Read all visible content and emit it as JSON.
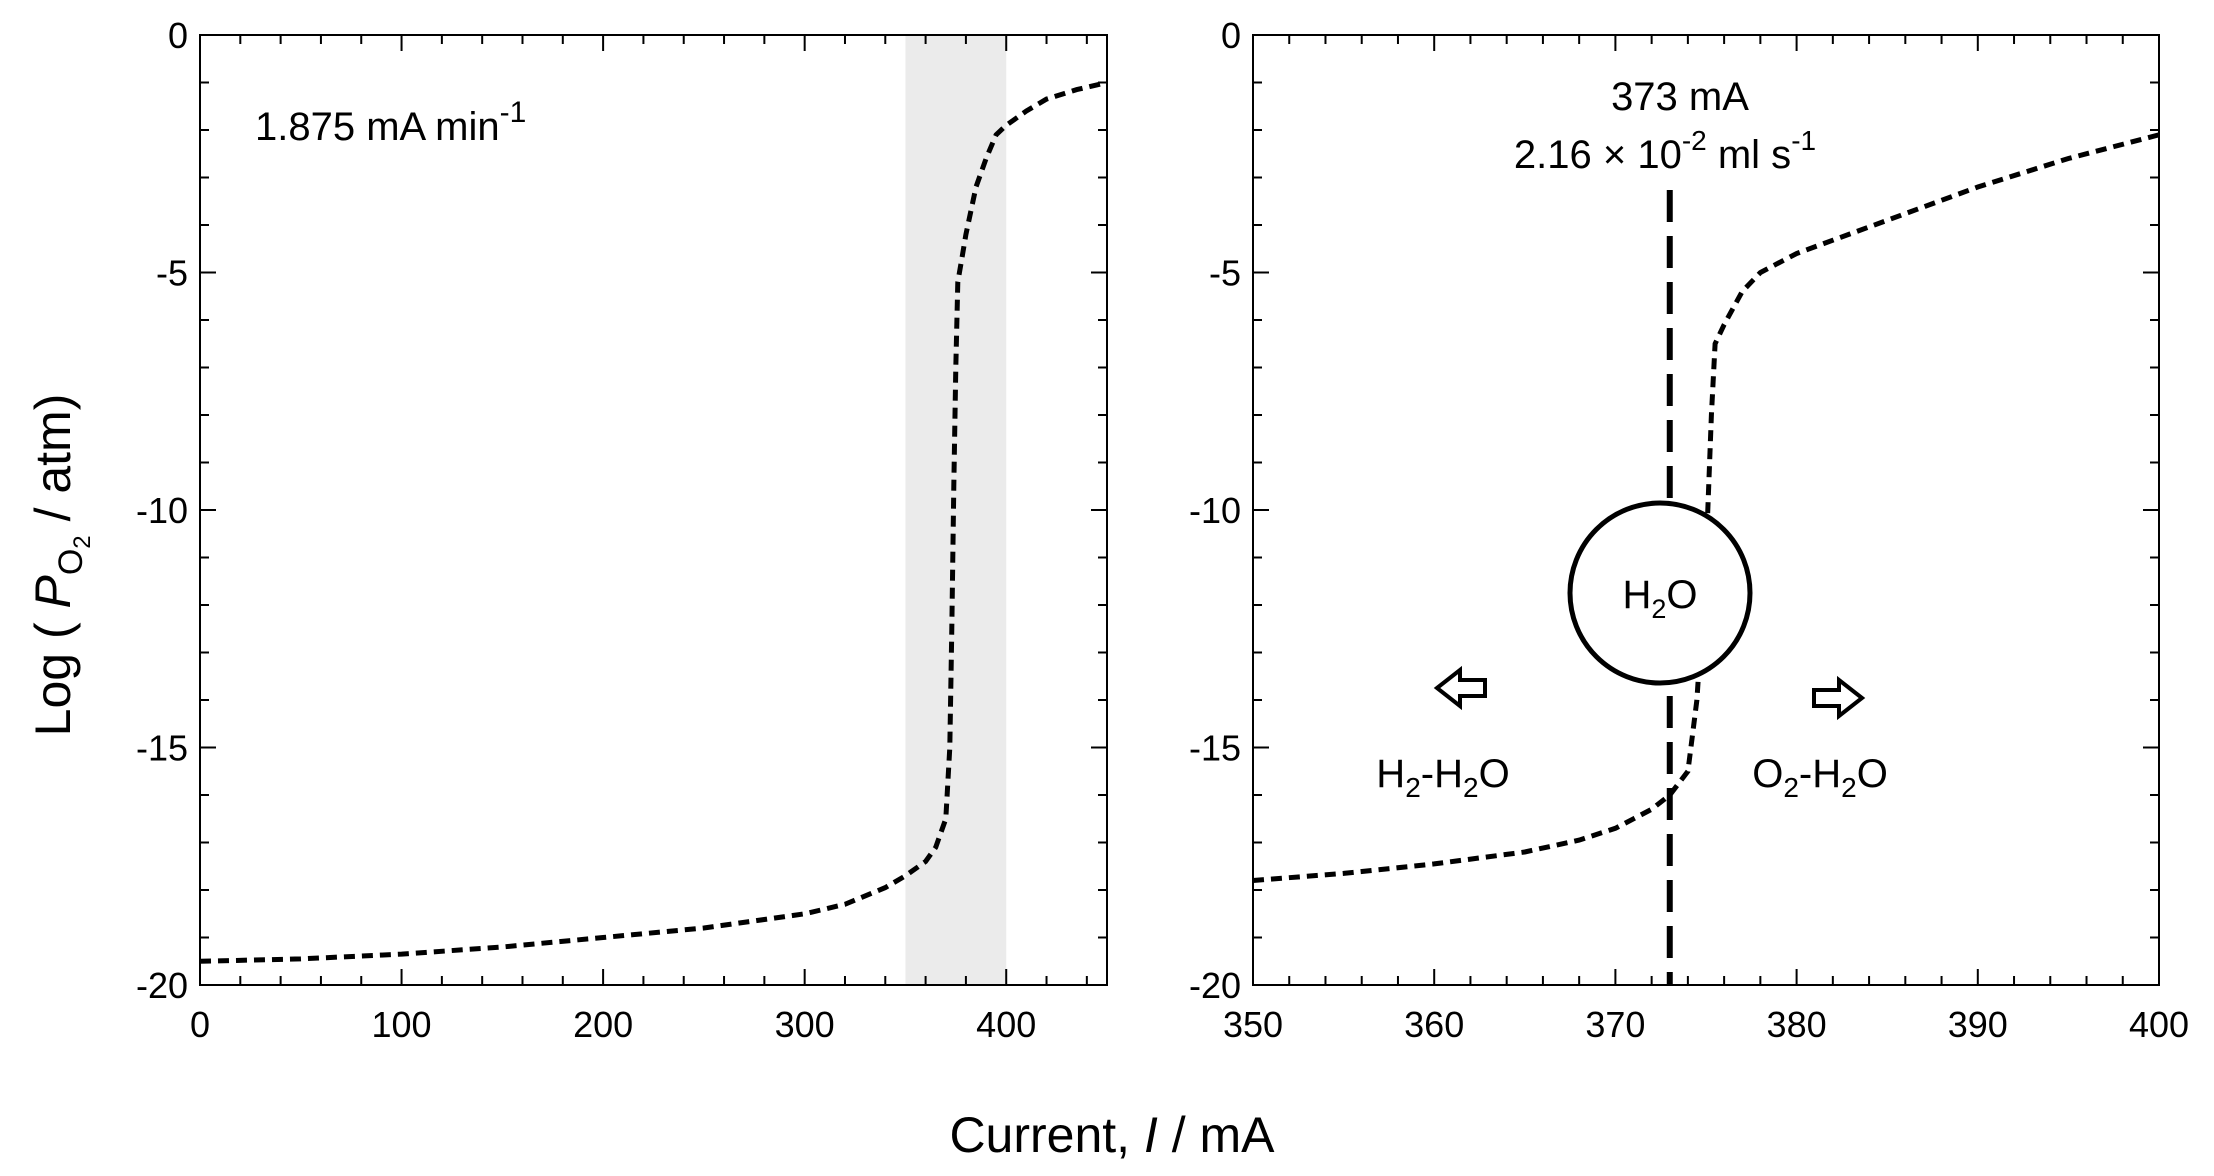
{
  "y_axis_title": {
    "prefix": "Log ( ",
    "var": "P",
    "sub": "O",
    "subsub": "2",
    "suffix": " / atm)"
  },
  "x_axis_title": {
    "prefix": "Current, ",
    "var": "I",
    "suffix": " / mA"
  },
  "chart_data": [
    {
      "type": "line",
      "xlim": [
        0,
        450
      ],
      "ylim": [
        -20,
        0
      ],
      "x_ticks": [
        0,
        100,
        200,
        300,
        400
      ],
      "y_ticks": [
        0,
        -5,
        -10,
        -15,
        -20
      ],
      "shaded_region": {
        "x": [
          350,
          400
        ],
        "color": "#ebebeb"
      },
      "annotation": {
        "text": "1.875 mA min",
        "sup": "-1"
      },
      "series": [
        {
          "style": "dashed",
          "x": [
            0,
            50,
            100,
            150,
            200,
            250,
            300,
            320,
            340,
            350,
            360,
            365,
            370,
            372,
            373,
            374,
            375,
            376,
            378,
            380,
            385,
            390,
            395,
            400,
            410,
            420,
            435,
            450
          ],
          "y": [
            -19.5,
            -19.45,
            -19.35,
            -19.2,
            -19.0,
            -18.8,
            -18.5,
            -18.3,
            -17.95,
            -17.7,
            -17.4,
            -17.1,
            -16.5,
            -15.0,
            -12.5,
            -9.5,
            -7.0,
            -5.2,
            -4.7,
            -4.2,
            -3.2,
            -2.6,
            -2.1,
            -1.9,
            -1.6,
            -1.35,
            -1.15,
            -1.0
          ]
        }
      ]
    },
    {
      "type": "line",
      "xlim": [
        350,
        400
      ],
      "ylim": [
        -20,
        0
      ],
      "x_ticks": [
        350,
        360,
        370,
        380,
        390,
        400
      ],
      "y_ticks": [
        0,
        -5,
        -10,
        -15,
        -20
      ],
      "vertical_line": {
        "x": 373,
        "style": "dashed"
      },
      "label_current": "373 mA",
      "label_flow": {
        "base": "2.16 × 10",
        "sup1": "-2",
        "mid": " ml s",
        "sup2": "-1"
      },
      "circle_label": {
        "H": "H",
        "sub": "2",
        "O": "O"
      },
      "left_label": {
        "a": "H",
        "a_sub": "2",
        "b": "-H",
        "b_sub": "2",
        "c": "O"
      },
      "right_label": {
        "a": "O",
        "a_sub": "2",
        "b": "-H",
        "b_sub": "2",
        "c": "O"
      },
      "series": [
        {
          "style": "dashed",
          "x": [
            350,
            355,
            360,
            365,
            368,
            370,
            371,
            372,
            373,
            374,
            374.5,
            375,
            375.3,
            375.5,
            376,
            377,
            378,
            380,
            385,
            390,
            395,
            400
          ],
          "y": [
            -17.8,
            -17.65,
            -17.45,
            -17.2,
            -16.95,
            -16.7,
            -16.5,
            -16.3,
            -16.0,
            -15.5,
            -14.0,
            -11.0,
            -8.0,
            -6.5,
            -6.1,
            -5.4,
            -5.0,
            -4.6,
            -3.9,
            -3.2,
            -2.6,
            -2.1
          ]
        }
      ]
    }
  ]
}
